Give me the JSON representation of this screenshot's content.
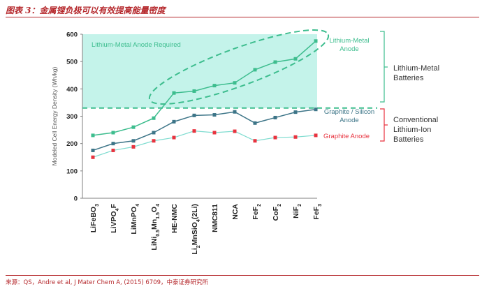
{
  "figure": {
    "title": "图表 3：金属锂负极可以有效提高能量密度",
    "source": "来源：QS，Andre et al, J Mater Chem A, (2015) 6709，中泰证券研究所"
  },
  "colors": {
    "lithium_metal": "#3dbd8e",
    "graphite_silicon": "#3d7588",
    "graphite": "#e8333f",
    "graphite_line": "#7fdcd0",
    "region_fill": "#c4f3ea",
    "brace_green": "#3dbd8e",
    "brace_red": "#e8333f",
    "title_red": "#b5282c"
  },
  "chart_data": {
    "type": "line",
    "ylabel": "Modeled Cell Energy Density (Wh/kg)",
    "ylim": [
      0,
      600
    ],
    "yticks": [
      "0",
      "100",
      "200",
      "300",
      "400",
      "500",
      "600"
    ],
    "grid": false,
    "categories": [
      {
        "base": "LiFeBO",
        "sub": "3"
      },
      {
        "base": "LiVPO",
        "sub": "4",
        "tail": "F"
      },
      {
        "base": "LiMnPO",
        "sub": "4"
      },
      {
        "base": "LiNi",
        "sub": "0.5",
        "mid": "Mn",
        "sub2": "1.5",
        "tail": "O",
        "sub3": "4"
      },
      {
        "base": "HE-NMC"
      },
      {
        "base": "Li",
        "sub": "2",
        "mid": "MnSiO",
        "sub2": "4",
        "tail": "(2Li)"
      },
      {
        "base": "NMC811"
      },
      {
        "base": "NCA"
      },
      {
        "base": "FeF",
        "sub": "2"
      },
      {
        "base": "CoF",
        "sub": "2"
      },
      {
        "base": "NiF",
        "sub": "2"
      },
      {
        "base": "FeF",
        "sub": "3"
      }
    ],
    "series": [
      {
        "name": "Lithium-Metal Anode",
        "values": [
          230,
          240,
          260,
          293,
          385,
          392,
          412,
          422,
          470,
          498,
          510,
          575
        ]
      },
      {
        "name": "Graphite / Silicon Anode",
        "values": [
          175,
          200,
          210,
          240,
          280,
          303,
          305,
          316,
          275,
          295,
          315,
          325
        ]
      },
      {
        "name": "Graphite Anode",
        "values": [
          150,
          175,
          188,
          210,
          222,
          246,
          240,
          245,
          210,
          222,
          224,
          230
        ]
      }
    ],
    "threshold": 330,
    "annotations": {
      "region_label": "Lithium-Metal Anode Required",
      "lithium_metal_label": [
        "Lithium-Metal",
        "Anode"
      ],
      "graphite_silicon_label": [
        "Graphite / Silicon",
        "Anode"
      ],
      "graphite_label": "Graphite Anode",
      "group_lithium_metal": [
        "Lithium-Metal",
        "Batteries"
      ],
      "group_conventional": [
        "Conventional",
        "Lithium-Ion",
        "Batteries"
      ]
    }
  }
}
